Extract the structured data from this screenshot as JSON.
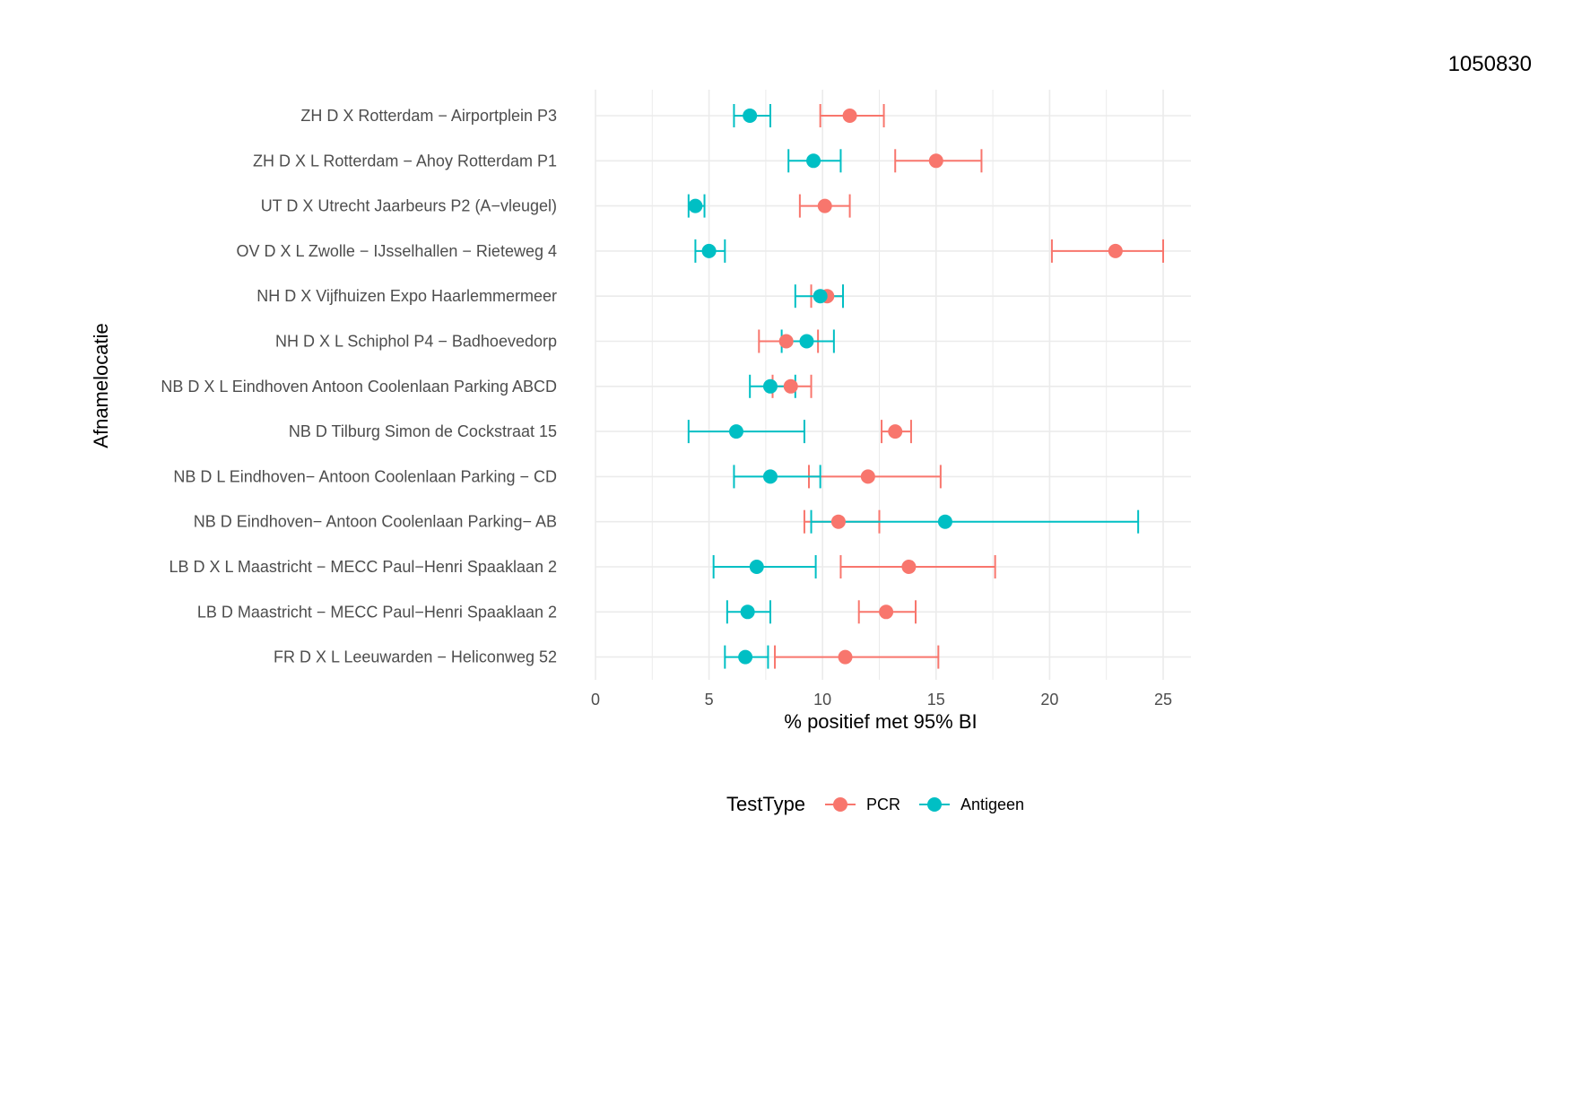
{
  "document_id": "1050830",
  "colors": {
    "PCR": "#F8766D",
    "Antigeen": "#00BFC4",
    "grid": "#EBEBEB"
  },
  "chart_data": {
    "type": "scatter",
    "subtype": "dot-errorbar",
    "title": "",
    "xlabel": "% positief met 95% BI",
    "ylabel": "Afnamelocatie",
    "xlim": [
      0,
      25
    ],
    "xticks": [
      0,
      5,
      10,
      15,
      20,
      25
    ],
    "legend_title": "TestType",
    "legend_position": "bottom",
    "grid": true,
    "categories": [
      "ZH D X Rotterdam − Airportplein P3",
      "ZH D X L Rotterdam − Ahoy Rotterdam P1",
      "UT D X Utrecht Jaarbeurs P2 (A−vleugel)",
      "OV D X L Zwolle − IJsselhallen − Rieteweg 4",
      "NH D X Vijfhuizen Expo Haarlemmermeer",
      "NH D X L Schiphol P4 − Badhoevedorp",
      "NB D X L Eindhoven Antoon Coolenlaan Parking ABCD",
      "NB D Tilburg Simon de Cockstraat 15",
      "NB D L Eindhoven− Antoon Coolenlaan Parking − CD",
      "NB D Eindhoven− Antoon Coolenlaan Parking− AB",
      "LB D X L Maastricht − MECC Paul−Henri Spaaklaan 2",
      "LB D Maastricht − MECC Paul−Henri Spaaklaan 2",
      "FR D X L Leeuwarden − Heliconweg 52"
    ],
    "series": [
      {
        "name": "PCR",
        "values": [
          11.2,
          15.0,
          10.1,
          22.9,
          10.2,
          8.4,
          8.6,
          13.2,
          12.0,
          10.7,
          13.8,
          12.8,
          11.0
        ],
        "lower": [
          9.9,
          13.2,
          9.0,
          20.1,
          9.5,
          7.2,
          7.8,
          12.6,
          9.4,
          9.2,
          10.8,
          11.6,
          7.9
        ],
        "upper": [
          12.7,
          17.0,
          11.2,
          25.0,
          10.9,
          9.8,
          9.5,
          13.9,
          15.2,
          12.5,
          17.6,
          14.1,
          15.1
        ]
      },
      {
        "name": "Antigeen",
        "values": [
          6.8,
          9.6,
          4.4,
          5.0,
          9.9,
          9.3,
          7.7,
          6.2,
          7.7,
          15.4,
          7.1,
          6.7,
          6.6
        ],
        "lower": [
          6.1,
          8.5,
          4.1,
          4.4,
          8.8,
          8.2,
          6.8,
          4.1,
          6.1,
          9.5,
          5.2,
          5.8,
          5.7
        ],
        "upper": [
          7.7,
          10.8,
          4.8,
          5.7,
          10.9,
          10.5,
          8.8,
          9.2,
          9.9,
          23.9,
          9.7,
          7.7,
          7.6
        ]
      }
    ]
  }
}
